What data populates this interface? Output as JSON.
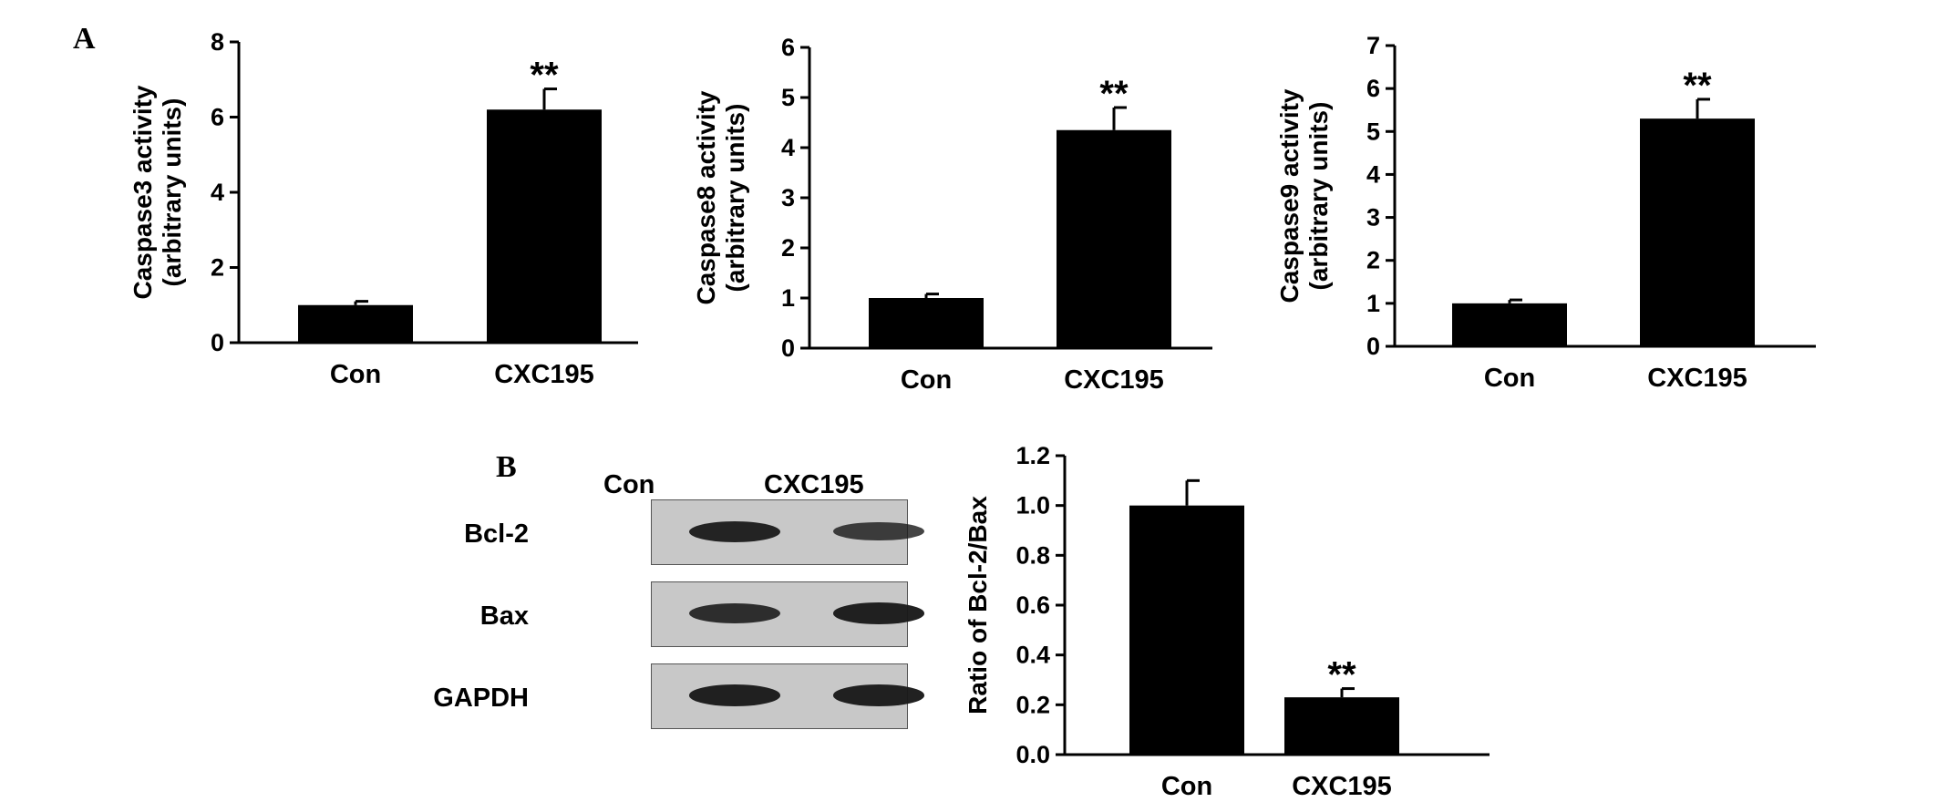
{
  "panels": {
    "a": "A",
    "b": "B"
  },
  "chart_data": [
    {
      "type": "bar",
      "categories": [
        "Con",
        "CXC195"
      ],
      "values": [
        1.0,
        6.2
      ],
      "errors": [
        0.1,
        0.55
      ],
      "annotations": [
        "",
        "**"
      ],
      "ylabel_lines": [
        "Caspase3 activity",
        "(arbitrary units)"
      ],
      "ylim": [
        0,
        8
      ],
      "yticks": [
        0,
        2,
        4,
        6,
        8
      ],
      "ytick_labels": [
        "0",
        "2",
        "4",
        "6",
        "8"
      ]
    },
    {
      "type": "bar",
      "categories": [
        "Con",
        "CXC195"
      ],
      "values": [
        1.0,
        4.35
      ],
      "errors": [
        0.08,
        0.45
      ],
      "annotations": [
        "",
        "**"
      ],
      "ylabel_lines": [
        "Caspase8 activity",
        "(arbitrary units)"
      ],
      "ylim": [
        0,
        6
      ],
      "yticks": [
        0,
        1,
        2,
        3,
        4,
        5,
        6
      ],
      "ytick_labels": [
        "0",
        "1",
        "2",
        "3",
        "4",
        "5",
        "6"
      ]
    },
    {
      "type": "bar",
      "categories": [
        "Con",
        "CXC195"
      ],
      "values": [
        1.0,
        5.3
      ],
      "errors": [
        0.08,
        0.45
      ],
      "annotations": [
        "",
        "**"
      ],
      "ylabel_lines": [
        "Caspase9 activity",
        "(arbitrary units)"
      ],
      "ylim": [
        0,
        7
      ],
      "yticks": [
        0,
        1,
        2,
        3,
        4,
        5,
        6,
        7
      ],
      "ytick_labels": [
        "0",
        "1",
        "2",
        "3",
        "4",
        "5",
        "6",
        "7"
      ]
    },
    {
      "type": "bar",
      "categories": [
        "Con",
        "CXC195"
      ],
      "values": [
        1.0,
        0.23
      ],
      "errors": [
        0.1,
        0.035
      ],
      "annotations": [
        "",
        "**"
      ],
      "ylabel_lines": [
        "Ratio of Bcl-2/Bax"
      ],
      "ylim": [
        0,
        1.2
      ],
      "yticks": [
        0,
        0.2,
        0.4,
        0.6,
        0.8,
        1.0,
        1.2
      ],
      "ytick_labels": [
        "0.0",
        "0.2",
        "0.4",
        "0.6",
        "0.8",
        "1.0",
        "1.2"
      ]
    }
  ],
  "blot": {
    "lanes": [
      "Con",
      "CXC195"
    ],
    "rows": [
      {
        "label": "Bcl-2",
        "intensity": [
          0.9,
          0.65
        ]
      },
      {
        "label": "Bax",
        "intensity": [
          0.8,
          0.95
        ]
      },
      {
        "label": "GAPDH",
        "intensity": [
          0.95,
          0.95
        ]
      }
    ]
  },
  "colors": {
    "bar": "#000000",
    "axis": "#000000",
    "blot_bg": "#c8c8c8",
    "band": "#1a1a1a"
  }
}
